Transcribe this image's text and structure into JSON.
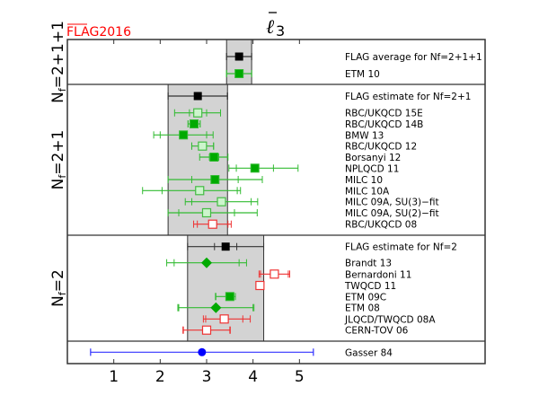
{
  "chart_data": {
    "type": "scatter",
    "title": "ℓ̄3",
    "watermark": "FLAG2016",
    "xlim": [
      0,
      9
    ],
    "xticks": [
      "1",
      "2",
      "3",
      "4",
      "5"
    ],
    "xtick_values": [
      1,
      2,
      3,
      4,
      5
    ],
    "groups": [
      {
        "name": "Nf=2+1+1",
        "label_main": "N",
        "label_sub": "f",
        "label_rest": "=2+1+1",
        "band": [
          3.43,
          3.97
        ],
        "points": [
          {
            "label": "FLAG average for Nf=2+1+1",
            "value": 3.7,
            "inner": [
              3.43,
              3.97
            ],
            "outer": [
              3.43,
              3.97
            ],
            "style": "flag"
          },
          {
            "label": "ETM 10",
            "value": 3.7,
            "inner": [
              3.43,
              3.97
            ],
            "outer": [
              3.43,
              3.97
            ],
            "style": "green-filled"
          }
        ]
      },
      {
        "name": "Nf=2+1",
        "label_main": "N",
        "label_sub": "f",
        "label_rest": "=2+1",
        "band": [
          2.17,
          3.45
        ],
        "points": [
          {
            "label": "FLAG estimate for Nf=2+1",
            "value": 2.81,
            "inner": [
              2.17,
              3.45
            ],
            "outer": [
              2.17,
              3.45
            ],
            "style": "flag"
          },
          {
            "label": "RBC/UKQCD 15E",
            "value": 2.81,
            "inner": [
              2.63,
              3.0
            ],
            "outer": [
              2.31,
              3.3
            ],
            "style": "green-pale"
          },
          {
            "label": "RBC/UKQCD 14B",
            "value": 2.73,
            "inner": [
              2.6,
              2.86
            ],
            "outer": [
              2.6,
              2.86
            ],
            "style": "green-filled"
          },
          {
            "label": "BMW 13",
            "value": 2.5,
            "inner": [
              2.0,
              3.0
            ],
            "outer": [
              1.86,
              3.14
            ],
            "style": "green-filled"
          },
          {
            "label": "RBC/UKQCD 12",
            "value": 2.91,
            "inner": [
              2.68,
              3.15
            ],
            "outer": [
              2.68,
              3.15
            ],
            "style": "green-pale"
          },
          {
            "label": "Borsanyi 12",
            "value": 3.16,
            "inner": [
              3.06,
              3.26
            ],
            "outer": [
              2.85,
              3.46
            ],
            "style": "green-filled"
          },
          {
            "label": "NPLQCD 11",
            "value": 4.04,
            "inner": [
              3.64,
              4.44
            ],
            "outer": [
              3.48,
              4.97
            ],
            "style": "green-filled"
          },
          {
            "label": "MILC 10",
            "value": 3.18,
            "inner": [
              2.68,
              3.68
            ],
            "outer": [
              2.17,
              4.2
            ],
            "style": "green-filled"
          },
          {
            "label": "MILC 10A",
            "value": 2.85,
            "inner": [
              2.04,
              3.66
            ],
            "outer": [
              1.62,
              3.73
            ],
            "style": "green-pale"
          },
          {
            "label": "MILC 09A, SU(3)−fit",
            "value": 3.32,
            "inner": [
              2.68,
              3.96
            ],
            "outer": [
              2.54,
              4.1
            ],
            "style": "green-pale"
          },
          {
            "label": "MILC 09A, SU(2)−fit",
            "value": 3.0,
            "inner": [
              2.4,
              3.6
            ],
            "outer": [
              2.17,
              4.09
            ],
            "style": "green-pale"
          },
          {
            "label": "RBC/UKQCD 08",
            "value": 3.13,
            "inner": [
              2.8,
              3.46
            ],
            "outer": [
              2.72,
              3.53
            ],
            "style": "red-open"
          }
        ]
      },
      {
        "name": "Nf=2",
        "label_main": "N",
        "label_sub": "f",
        "label_rest": "=2",
        "band": [
          2.59,
          4.23
        ],
        "points": [
          {
            "label": "FLAG estimate for Nf=2",
            "value": 3.41,
            "inner": [
              3.17,
              3.65
            ],
            "outer": [
              2.59,
              4.23
            ],
            "style": "flag"
          },
          {
            "label": "Brandt 13",
            "value": 3.0,
            "inner": [
              2.3,
              3.7
            ],
            "outer": [
              2.14,
              3.86
            ],
            "style": "green-diamond"
          },
          {
            "label": "Bernardoni 11",
            "value": 4.46,
            "inner": [
              4.16,
              4.76
            ],
            "outer": [
              4.13,
              4.79
            ],
            "style": "red-open"
          },
          {
            "label": "TWQCD 11",
            "value": 4.149,
            "inner": [
              4.114,
              4.184
            ],
            "outer": [
              4.1,
              4.2
            ],
            "style": "red-open"
          },
          {
            "label": "ETM 09C",
            "value": 3.5,
            "inner": [
              3.2,
              3.59
            ],
            "outer": [
              3.19,
              3.62
            ],
            "style": "green-filled"
          },
          {
            "label": "ETM 08",
            "value": 3.2,
            "inner": [
              2.4,
              4.0
            ],
            "outer": [
              2.38,
              4.02
            ],
            "style": "green-diamond"
          },
          {
            "label": "JLQCD/TWQCD 08A",
            "value": 3.38,
            "inner": [
              2.98,
              3.78
            ],
            "outer": [
              2.93,
              3.94
            ],
            "style": "red-open"
          },
          {
            "label": "CERN-TOV 06",
            "value": 3.0,
            "inner": [
              2.5,
              3.5
            ],
            "outer": [
              2.49,
              3.51
            ],
            "style": "red-open"
          }
        ]
      },
      {
        "name": "pheno",
        "label_main": "",
        "label_sub": "",
        "label_rest": "",
        "band": null,
        "points": [
          {
            "label": "Gasser 84",
            "value": 2.9,
            "inner": [
              0.5,
              5.3
            ],
            "outer": [
              0.5,
              5.3
            ],
            "style": "blue-circle"
          }
        ]
      }
    ]
  }
}
